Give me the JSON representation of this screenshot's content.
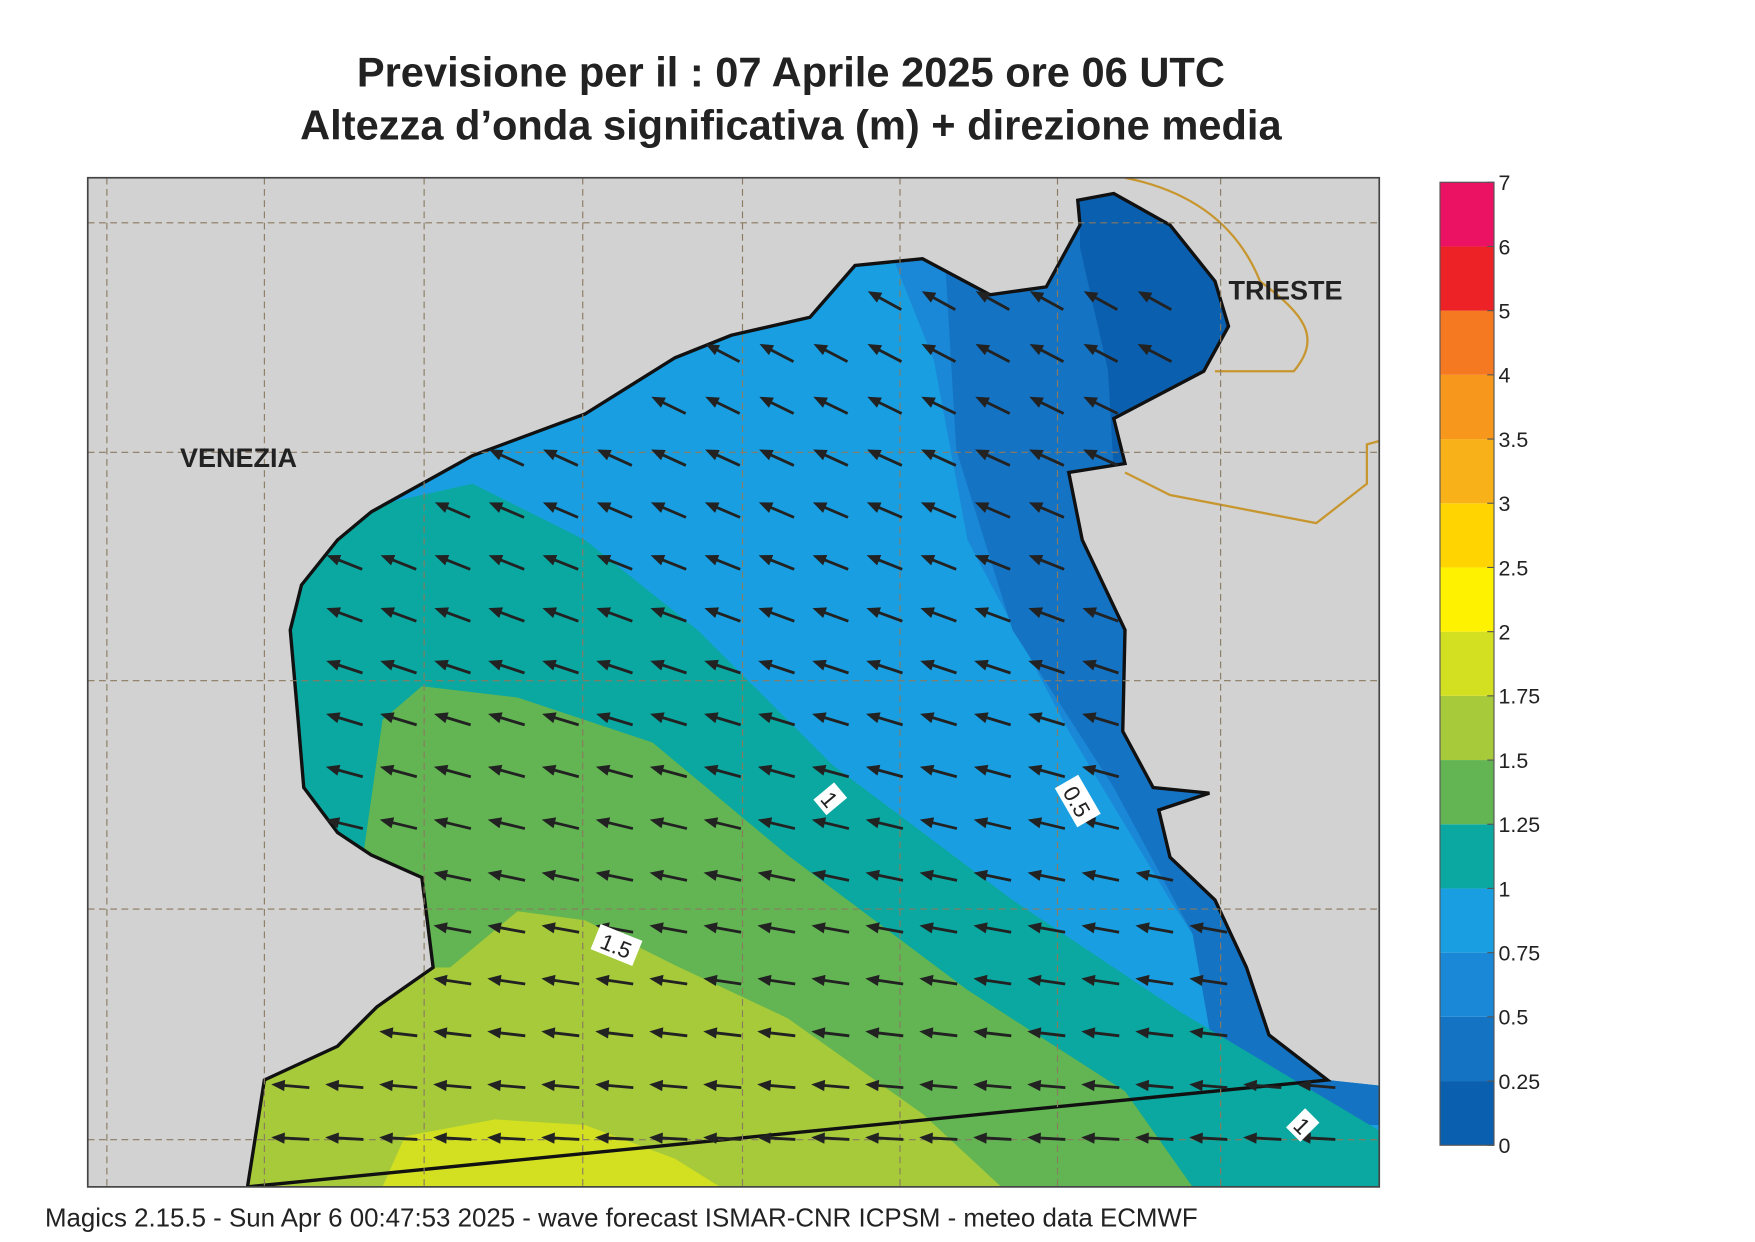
{
  "header": {
    "title": "Previsione per il  :  07   Aprile  2025   ore 06 UTC",
    "subtitle": "Altezza d’onda significativa (m) + direzione media"
  },
  "map": {
    "places": [
      "VENEZIA",
      "TRIESTE"
    ],
    "contour_labels": [
      1,
      0.5,
      1.5,
      1
    ]
  },
  "colorbar": {
    "levels": [
      0,
      0.25,
      0.5,
      0.75,
      1,
      1.25,
      1.5,
      1.75,
      2,
      2.5,
      3,
      3.5,
      4,
      5,
      6,
      7
    ],
    "colors": [
      "#0b5faf",
      "#1573c4",
      "#1a88d6",
      "#199fe1",
      "#0aa8a0",
      "#62b552",
      "#a6ca3a",
      "#d3e021",
      "#fff200",
      "#ffd400",
      "#f9b11a",
      "#f7981d",
      "#f47920",
      "#ec2227",
      "#ec1263"
    ]
  },
  "footer": "Magics 2.15.5 - Sun Apr  6 00:47:53 2025 - wave forecast  ISMAR-CNR  ICPSM - meteo data   ECMWF"
}
